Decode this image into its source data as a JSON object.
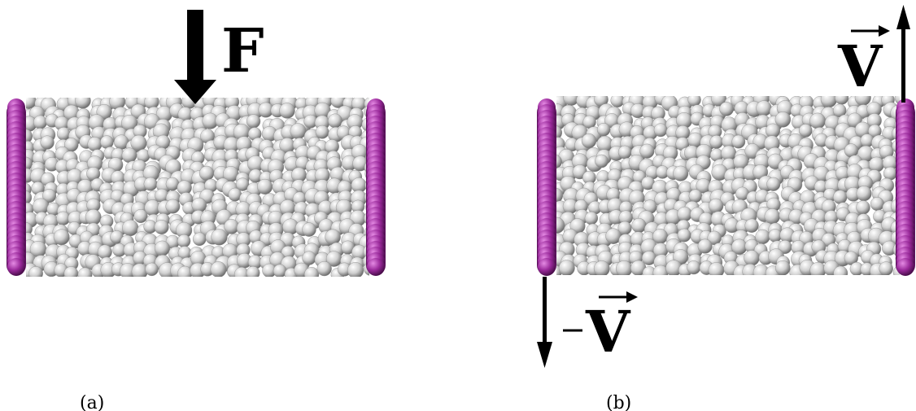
{
  "panels": [
    {
      "id": "a",
      "caption": "(a)",
      "force_label": "F"
    },
    {
      "id": "b",
      "caption": "(b)",
      "velocity_label": "V",
      "neg_velocity_label": "V"
    }
  ],
  "colors": {
    "wall": "#8e1f8f",
    "wall_highlight": "#d96ad8",
    "grain": "#d9d9d9",
    "grain_shadow": "#7a7a7a",
    "arrow": "#000000"
  }
}
